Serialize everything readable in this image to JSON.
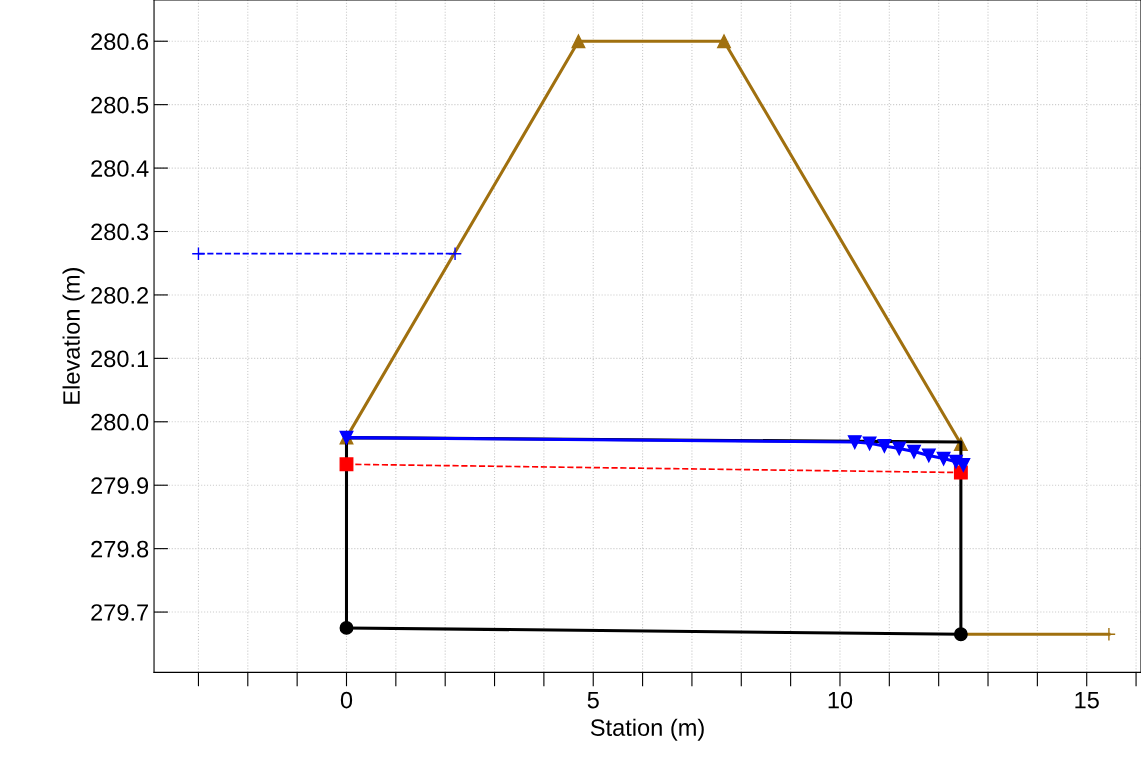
{
  "chart_data": {
    "type": "line",
    "xlabel": "Station (m)",
    "ylabel": "Elevation (m)",
    "xlim": [
      -3.9,
      16.1
    ],
    "ylim": [
      279.605,
      280.665
    ],
    "xticks": [
      {
        "value": -3,
        "label": null
      },
      {
        "value": -2,
        "label": null
      },
      {
        "value": -1,
        "label": null
      },
      0,
      {
        "value": 1,
        "label": null
      },
      {
        "value": 2,
        "label": null
      },
      {
        "value": 3,
        "label": null
      },
      {
        "value": 4,
        "label": null
      },
      5,
      {
        "value": 6,
        "label": null
      },
      {
        "value": 7,
        "label": null
      },
      {
        "value": 8,
        "label": null
      },
      {
        "value": 9,
        "label": null
      },
      10,
      {
        "value": 11,
        "label": null
      },
      {
        "value": 12,
        "label": null
      },
      {
        "value": 13,
        "label": null
      },
      {
        "value": 14,
        "label": null
      },
      15,
      {
        "value": 16,
        "label": null
      }
    ],
    "yticks": [
      279.7,
      279.8,
      279.9,
      {
        "value": 280.0,
        "label": "280.0"
      },
      280.1,
      280.2,
      280.3,
      280.4,
      280.5,
      280.6
    ],
    "grid": true,
    "series": [
      {
        "color": "#a0700f",
        "marker": "triangle",
        "line_style": "solid",
        "x": [
          0,
          4.7,
          7.65,
          12.45
        ],
        "values": [
          279.975,
          280.6,
          280.6,
          279.965
        ]
      },
      {
        "color": "#a0700f",
        "marker": "cross",
        "line_style": "solid",
        "x": [
          12.45,
          15.45
        ],
        "values": [
          279.665,
          279.665
        ]
      },
      {
        "color": "#0000ff",
        "marker": "cross",
        "line_style": "dashed",
        "x": [
          -3,
          2.2
        ],
        "values": [
          280.265,
          280.265
        ]
      },
      {
        "color": "#000000",
        "marker": "circle",
        "line_style": "solid",
        "x": [
          0,
          12.45
        ],
        "values": [
          279.675,
          279.665
        ]
      },
      {
        "color": "#000000",
        "line_style": "solid",
        "x": [
          0,
          0,
          12.45,
          12.45
        ],
        "values": [
          279.675,
          279.975,
          279.968,
          279.665
        ]
      },
      {
        "color": "#ff0000",
        "marker": "square",
        "line_style": "dashed",
        "x": [
          0,
          12.45
        ],
        "values": [
          279.933,
          279.92
        ]
      },
      {
        "color": "#0000ff",
        "marker": "triangle_down",
        "line_style": "solid",
        "x": [
          0,
          10.3,
          10.6,
          10.9,
          11.2,
          11.5,
          11.8,
          12.1,
          12.35,
          12.5
        ],
        "values": [
          279.975,
          279.968,
          279.966,
          279.962,
          279.958,
          279.953,
          279.947,
          279.942,
          279.937,
          279.932
        ]
      }
    ]
  }
}
